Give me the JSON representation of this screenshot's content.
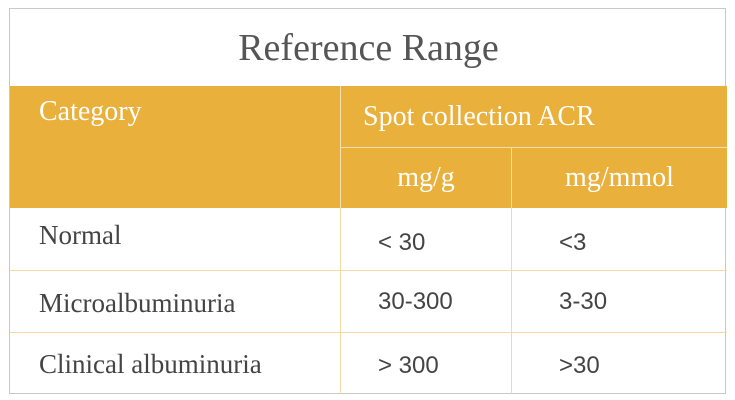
{
  "title": "Reference Range",
  "table": {
    "header": [
      "Category",
      "Spot collection ACR"
    ],
    "subheader": [
      "mg/g",
      "mg/mmol"
    ],
    "rows": [
      [
        "Normal",
        "< 30",
        "<3"
      ],
      [
        "Microalbuminuria",
        "30-300",
        "3-30"
      ],
      [
        "Clinical albuminuria",
        "> 300",
        ">30"
      ]
    ]
  }
}
